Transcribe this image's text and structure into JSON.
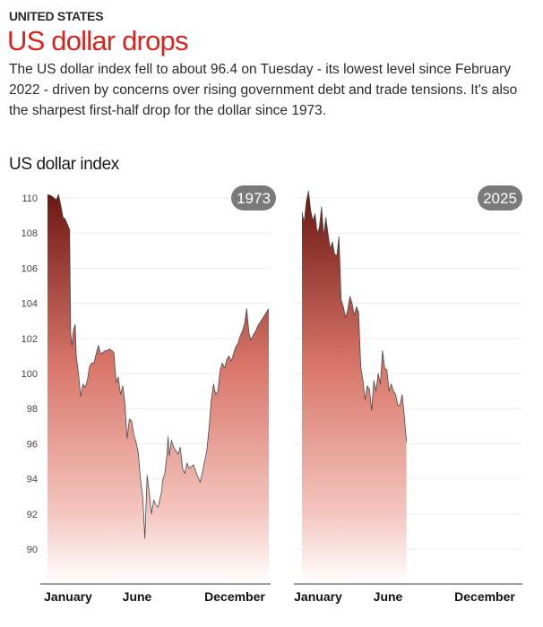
{
  "header": {
    "kicker": "UNITED STATES",
    "title": "US dollar drops",
    "description": "The US dollar index fell to about 96.4 on Tuesday - its lowest level since February 2022 - driven by concerns over rising government debt and trade tensions. It's also the sharpest first-half drop for the dollar since 1973."
  },
  "colors": {
    "title": "#d9231d",
    "fill_top": "#6b1510",
    "fill_mid": "#d9776b",
    "fill_bottom": "#ffffff",
    "line": "#4a4a4a",
    "badge": "#7a7a7a",
    "grid": "#ebebeb",
    "axis": "#666666"
  },
  "chart_data": [
    {
      "type": "area",
      "title": "US dollar index",
      "badge": "1973",
      "ylabel": "",
      "xlabel": "",
      "ylim": [
        88,
        110.6
      ],
      "yticks": [
        90,
        92,
        94,
        96,
        98,
        100,
        102,
        104,
        106,
        108,
        110
      ],
      "xticks": [
        "January",
        "June",
        "December"
      ],
      "xlim": [
        0,
        1
      ],
      "grid": true,
      "x": [
        0.0,
        0.02,
        0.04,
        0.05,
        0.06,
        0.07,
        0.08,
        0.09,
        0.1,
        0.105,
        0.11,
        0.118,
        0.125,
        0.13,
        0.14,
        0.15,
        0.16,
        0.17,
        0.18,
        0.19,
        0.2,
        0.21,
        0.22,
        0.23,
        0.24,
        0.25,
        0.26,
        0.27,
        0.28,
        0.29,
        0.3,
        0.31,
        0.32,
        0.33,
        0.34,
        0.35,
        0.36,
        0.37,
        0.38,
        0.39,
        0.4,
        0.41,
        0.42,
        0.43,
        0.44,
        0.45,
        0.46,
        0.47,
        0.48,
        0.49,
        0.5,
        0.505,
        0.51,
        0.515,
        0.52,
        0.53,
        0.54,
        0.545,
        0.55,
        0.56,
        0.57,
        0.58,
        0.59,
        0.6,
        0.61,
        0.62,
        0.63,
        0.64,
        0.65,
        0.66,
        0.67,
        0.68,
        0.69,
        0.7,
        0.71,
        0.72,
        0.73,
        0.74,
        0.75,
        0.76,
        0.77,
        0.78,
        0.79,
        0.8,
        0.81,
        0.82,
        0.83,
        0.84,
        0.85,
        0.86,
        0.87,
        0.88,
        0.89,
        0.9,
        0.91,
        0.92,
        0.93,
        0.94,
        0.95,
        0.96,
        0.97,
        0.98,
        0.99,
        1.0
      ],
      "series": [
        {
          "name": "1973",
          "values": [
            110.2,
            110.1,
            109.9,
            110.2,
            109.6,
            108.9,
            108.8,
            108.5,
            108.2,
            102.3,
            101.6,
            102.5,
            102.8,
            101.0,
            100.0,
            98.7,
            99.4,
            99.2,
            99.6,
            100.4,
            100.6,
            100.6,
            101.1,
            101.6,
            101.1,
            101.2,
            101.3,
            101.3,
            101.4,
            101.3,
            101.2,
            99.5,
            99.8,
            98.8,
            99.3,
            98.3,
            96.3,
            97.4,
            97.3,
            96.5,
            96.1,
            95.5,
            94.0,
            93.0,
            90.6,
            94.2,
            93.2,
            92.0,
            92.8,
            92.5,
            92.4,
            92.7,
            93.0,
            93.2,
            93.9,
            94.3,
            95.4,
            96.4,
            95.3,
            96.2,
            95.8,
            95.6,
            95.4,
            95.8,
            94.6,
            94.3,
            94.9,
            94.6,
            94.7,
            94.8,
            94.4,
            94.1,
            93.8,
            94.4,
            95.0,
            95.6,
            96.9,
            98.5,
            99.4,
            98.8,
            99.0,
            100.2,
            100.6,
            100.3,
            100.8,
            101.0,
            100.7,
            101.1,
            101.5,
            101.7,
            102.1,
            102.4,
            102.8,
            103.7,
            102.3,
            101.9,
            102.2,
            102.4,
            102.7,
            102.9,
            103.1,
            103.3,
            103.5,
            103.7
          ]
        }
      ]
    },
    {
      "type": "area",
      "title": "US dollar index",
      "badge": "2025",
      "ylim": [
        88,
        110.6
      ],
      "yticks": [
        90,
        92,
        94,
        96,
        98,
        100,
        102,
        104,
        106,
        108,
        110
      ],
      "xticks": [
        "January",
        "June",
        "December"
      ],
      "xlim": [
        0,
        1
      ],
      "grid": true,
      "x": [
        0.0,
        0.01,
        0.02,
        0.03,
        0.04,
        0.05,
        0.06,
        0.07,
        0.08,
        0.09,
        0.1,
        0.11,
        0.12,
        0.13,
        0.14,
        0.15,
        0.16,
        0.17,
        0.18,
        0.19,
        0.2,
        0.21,
        0.22,
        0.23,
        0.24,
        0.25,
        0.26,
        0.27,
        0.28,
        0.29,
        0.3,
        0.31,
        0.32,
        0.33,
        0.34,
        0.35,
        0.36,
        0.37,
        0.38,
        0.39,
        0.4,
        0.41,
        0.42,
        0.43,
        0.44,
        0.45,
        0.46,
        0.47,
        0.48
      ],
      "series": [
        {
          "name": "2025",
          "values": [
            109.2,
            108.6,
            109.8,
            110.4,
            109.3,
            108.7,
            109.1,
            108.0,
            108.3,
            109.5,
            107.8,
            108.9,
            107.9,
            107.1,
            107.5,
            106.8,
            106.7,
            107.8,
            104.2,
            103.8,
            103.2,
            103.6,
            104.4,
            104.0,
            103.3,
            103.8,
            103.5,
            100.4,
            99.6,
            98.5,
            99.3,
            99.1,
            97.9,
            99.6,
            99.0,
            100.0,
            99.4,
            101.3,
            100.3,
            100.2,
            99.0,
            99.4,
            99.0,
            98.8,
            98.2,
            98.2,
            98.8,
            97.6,
            96.1
          ]
        }
      ]
    }
  ],
  "chart_title": "US dollar index",
  "y_tick_labels": [
    "90",
    "92",
    "94",
    "96",
    "98",
    "100",
    "102",
    "104",
    "106",
    "108",
    "110"
  ],
  "x_tick_labels": [
    "January",
    "June",
    "December"
  ],
  "badges": [
    "1973",
    "2025"
  ]
}
